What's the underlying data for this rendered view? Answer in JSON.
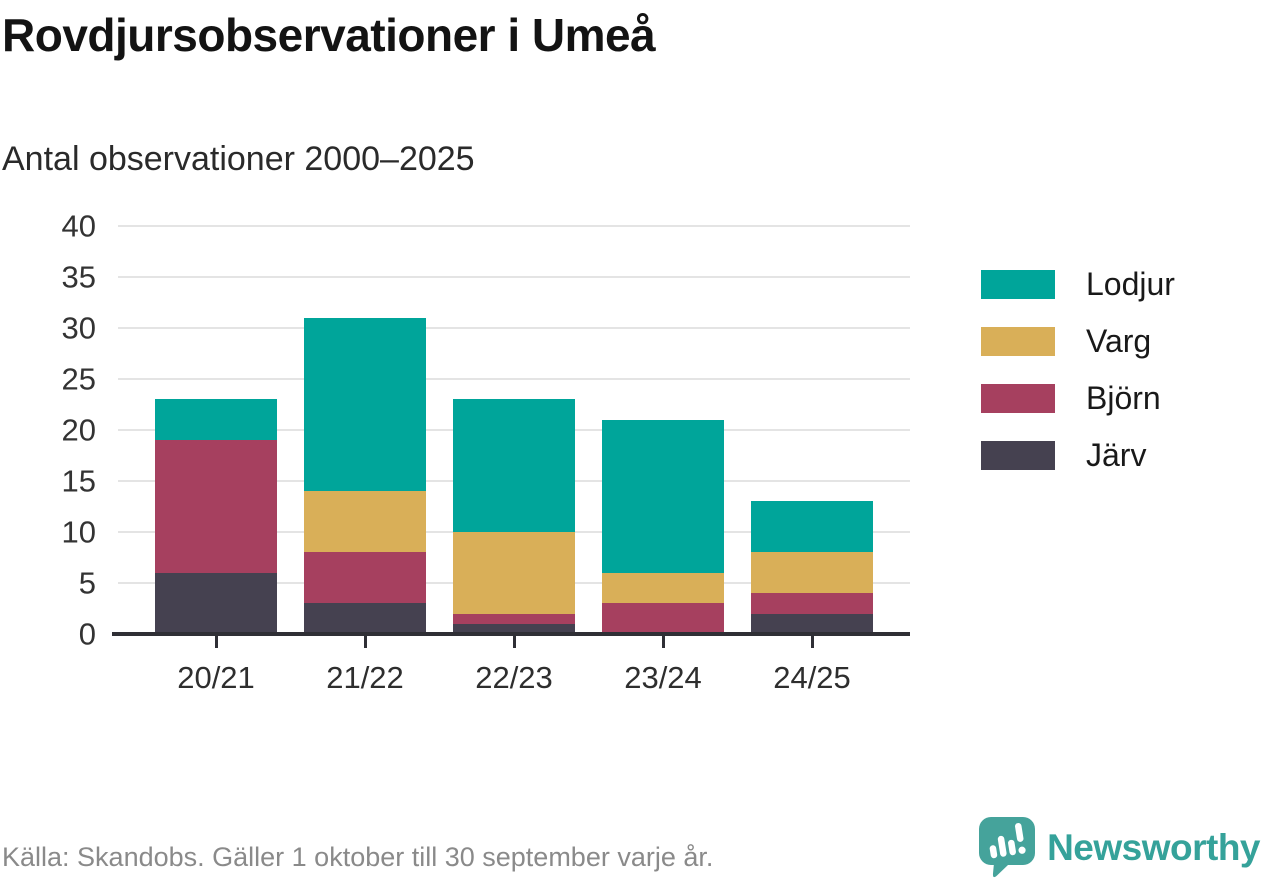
{
  "header": {
    "title": "Rovdjursobservationer i Umeå",
    "subtitle": "Antal observationer 2000–2025"
  },
  "chart_data": {
    "type": "bar",
    "stacked": true,
    "title": "Rovdjursobservationer i Umeå",
    "subtitle": "Antal observationer 2000–2025",
    "categories": [
      "20/21",
      "21/22",
      "22/23",
      "23/24",
      "24/25"
    ],
    "series": [
      {
        "name": "Järv",
        "color": "#454150",
        "values": [
          6,
          3,
          1,
          0,
          2
        ]
      },
      {
        "name": "Björn",
        "color": "#a6405f",
        "values": [
          13,
          5,
          1,
          3,
          2
        ]
      },
      {
        "name": "Varg",
        "color": "#d9af58",
        "values": [
          0,
          6,
          8,
          3,
          4
        ]
      },
      {
        "name": "Lodjur",
        "color": "#00a59a",
        "values": [
          4,
          17,
          13,
          15,
          5
        ]
      }
    ],
    "totals": [
      23,
      31,
      23,
      21,
      13
    ],
    "xlabel": "",
    "ylabel": "",
    "ylim": [
      0,
      40
    ],
    "yticks": [
      0,
      5,
      10,
      15,
      20,
      25,
      30,
      35,
      40
    ],
    "grid": true,
    "legend": [
      "Lodjur",
      "Varg",
      "Björn",
      "Järv"
    ],
    "legend_position": "right"
  },
  "footer": {
    "source": "Källa: Skandobs. Gäller 1 oktober till 30 september varje år.",
    "brand": "Newsworthy"
  },
  "colors": {
    "lodjur": "#00a59a",
    "varg": "#d9af58",
    "bjorn": "#a6405f",
    "jarv": "#454150",
    "axis": "#2f2f35",
    "gridline": "#e4e4e4",
    "brand_teal": "#45a39b",
    "footer_gray": "#8a8a8a"
  }
}
